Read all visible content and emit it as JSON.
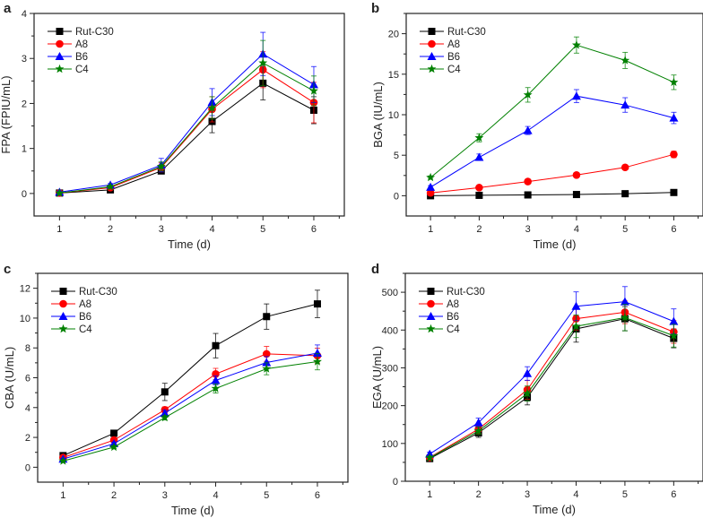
{
  "chart_data": [
    {
      "panel_label": "a",
      "type": "line",
      "xlabel": "Time (d)",
      "ylabel": "FPA (FPIU/mL)",
      "x": [
        1,
        2,
        3,
        4,
        5,
        6
      ],
      "xlim": [
        0.5,
        6.6
      ],
      "ylim": [
        -0.5,
        4
      ],
      "yticks": [
        0,
        1,
        2,
        3,
        4
      ],
      "xticks": [
        1,
        2,
        3,
        4,
        5,
        6
      ],
      "grid": false,
      "legend": "top-left",
      "series": [
        {
          "name": "Rut-C30",
          "color": "#000000",
          "marker": "square",
          "values": [
            0.01,
            0.08,
            0.5,
            1.6,
            2.45,
            1.85
          ],
          "errors": [
            0.02,
            0.03,
            0.06,
            0.25,
            0.37,
            0.3
          ]
        },
        {
          "name": "A8",
          "color": "#ff0000",
          "marker": "circle",
          "values": [
            0.01,
            0.13,
            0.58,
            1.87,
            2.75,
            2.02
          ],
          "errors": [
            0.02,
            0.03,
            0.1,
            0.28,
            0.4,
            0.45
          ]
        },
        {
          "name": "B6",
          "color": "#0000ff",
          "marker": "triangle",
          "values": [
            0.03,
            0.19,
            0.63,
            2.03,
            3.1,
            2.42
          ],
          "errors": [
            0.02,
            0.03,
            0.15,
            0.3,
            0.48,
            0.4
          ]
        },
        {
          "name": "C4",
          "color": "#008000",
          "marker": "star",
          "values": [
            0.01,
            0.15,
            0.6,
            1.9,
            2.9,
            2.28
          ],
          "errors": [
            0.02,
            0.03,
            0.1,
            0.25,
            0.5,
            0.33
          ]
        }
      ]
    },
    {
      "panel_label": "b",
      "type": "line",
      "xlabel": "Time (d)",
      "ylabel": "BGA (IU/mL)",
      "x": [
        1,
        2,
        3,
        4,
        5,
        6
      ],
      "xlim": [
        0.5,
        6.6
      ],
      "ylim": [
        -2.5,
        22.5
      ],
      "yticks": [
        0,
        5,
        10,
        15,
        20
      ],
      "xticks": [
        1,
        2,
        3,
        4,
        5,
        6
      ],
      "grid": false,
      "legend": "top-left",
      "series": [
        {
          "name": "Rut-C30",
          "color": "#000000",
          "marker": "square",
          "values": [
            0,
            0.05,
            0.1,
            0.15,
            0.25,
            0.4
          ],
          "errors": [
            0.1,
            0.1,
            0.1,
            0.1,
            0.1,
            0.15
          ]
        },
        {
          "name": "A8",
          "color": "#ff0000",
          "marker": "circle",
          "values": [
            0.35,
            1.0,
            1.75,
            2.55,
            3.5,
            5.1
          ],
          "errors": [
            0.1,
            0.1,
            0.15,
            0.15,
            0.2,
            0.4
          ]
        },
        {
          "name": "B6",
          "color": "#0000ff",
          "marker": "triangle",
          "values": [
            1.05,
            4.75,
            8.05,
            12.3,
            11.2,
            9.6
          ],
          "errors": [
            0.2,
            0.4,
            0.5,
            0.8,
            0.9,
            0.7
          ]
        },
        {
          "name": "C4",
          "color": "#008000",
          "marker": "star",
          "values": [
            2.25,
            7.15,
            12.45,
            18.6,
            16.7,
            14.0
          ],
          "errors": [
            0.2,
            0.5,
            0.9,
            1.0,
            1.0,
            0.9
          ]
        }
      ]
    },
    {
      "panel_label": "c",
      "type": "line",
      "xlabel": "Time (d)",
      "ylabel": "CBA (U/mL)",
      "x": [
        1,
        2,
        3,
        4,
        5,
        6
      ],
      "xlim": [
        0.5,
        6.6
      ],
      "ylim": [
        -1,
        13
      ],
      "yticks": [
        0,
        2,
        4,
        6,
        8,
        10,
        12
      ],
      "xticks": [
        1,
        2,
        3,
        4,
        5,
        6
      ],
      "grid": false,
      "legend": "top-left",
      "series": [
        {
          "name": "Rut-C30",
          "color": "#000000",
          "marker": "square",
          "values": [
            0.78,
            2.28,
            5.05,
            8.15,
            10.1,
            10.95
          ],
          "errors": [
            0.05,
            0.1,
            0.58,
            0.82,
            0.85,
            0.92
          ]
        },
        {
          "name": "A8",
          "color": "#ff0000",
          "marker": "circle",
          "values": [
            0.65,
            1.82,
            3.85,
            6.25,
            7.6,
            7.48
          ],
          "errors": [
            0.05,
            0.1,
            0.2,
            0.38,
            0.5,
            0.5
          ]
        },
        {
          "name": "B6",
          "color": "#0000ff",
          "marker": "triangle",
          "values": [
            0.55,
            1.58,
            3.62,
            5.82,
            7.02,
            7.65
          ],
          "errors": [
            0.05,
            0.1,
            0.2,
            0.3,
            0.4,
            0.55
          ]
        },
        {
          "name": "C4",
          "color": "#008000",
          "marker": "star",
          "values": [
            0.42,
            1.35,
            3.32,
            5.28,
            6.6,
            7.08
          ],
          "errors": [
            0.05,
            0.1,
            0.15,
            0.3,
            0.4,
            0.55
          ]
        }
      ]
    },
    {
      "panel_label": "d",
      "type": "line",
      "xlabel": "Time (d)",
      "ylabel": "EGA (U/mL)",
      "x": [
        1,
        2,
        3,
        4,
        5,
        6
      ],
      "xlim": [
        0.5,
        6.6
      ],
      "ylim": [
        0,
        550
      ],
      "yticks": [
        0,
        100,
        200,
        300,
        400,
        500
      ],
      "xticks": [
        1,
        2,
        3,
        4,
        5,
        6
      ],
      "grid": false,
      "legend": "top-left",
      "series": [
        {
          "name": "Rut-C30",
          "color": "#000000",
          "marker": "square",
          "values": [
            60,
            128,
            222,
            403,
            430,
            378
          ],
          "errors": [
            5,
            12,
            20,
            35,
            32,
            25
          ]
        },
        {
          "name": "A8",
          "color": "#ff0000",
          "marker": "circle",
          "values": [
            63,
            138,
            242,
            430,
            447,
            395
          ],
          "errors": [
            5,
            12,
            25,
            30,
            30,
            30
          ]
        },
        {
          "name": "B6",
          "color": "#0000ff",
          "marker": "triangle",
          "values": [
            72,
            155,
            285,
            463,
            475,
            423
          ],
          "errors": [
            5,
            12,
            18,
            38,
            40,
            33
          ]
        },
        {
          "name": "C4",
          "color": "#008000",
          "marker": "star",
          "values": [
            62,
            133,
            232,
            410,
            433,
            385
          ],
          "errors": [
            5,
            10,
            20,
            30,
            35,
            30
          ]
        }
      ]
    }
  ]
}
